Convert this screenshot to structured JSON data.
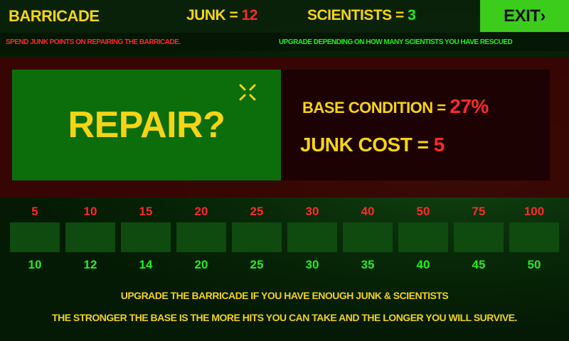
{
  "header": {
    "title": "BARRICADE",
    "junk_label": "JUNK = ",
    "junk_value": "12",
    "scientists_label": "SCIENTISTS = ",
    "scientists_value": "3",
    "exit_label": "EXIT›"
  },
  "subheader": {
    "left": "SPEND JUNK POINTS ON REPAIRING THE BARRICADE.",
    "right": "UPGRADE DEPENDING ON HOW MANY SCIENTISTS YOU HAVE RESCUED"
  },
  "repair": {
    "label": "REPAIR?",
    "cursor_icon": "crosshair-icon"
  },
  "info": {
    "condition_label": "BASE CONDITION = ",
    "condition_value": "27%",
    "cost_label": "JUNK COST = ",
    "cost_value": "5"
  },
  "upgrades": [
    {
      "junk": "5",
      "scientists": "10"
    },
    {
      "junk": "10",
      "scientists": "12"
    },
    {
      "junk": "15",
      "scientists": "14"
    },
    {
      "junk": "20",
      "scientists": "20"
    },
    {
      "junk": "25",
      "scientists": "25"
    },
    {
      "junk": "30",
      "scientists": "30"
    },
    {
      "junk": "40",
      "scientists": "35"
    },
    {
      "junk": "50",
      "scientists": "40"
    },
    {
      "junk": "75",
      "scientists": "45"
    },
    {
      "junk": "100",
      "scientists": "50"
    }
  ],
  "footer": {
    "line1": "UPGRADE THE BARRICADE IF YOU HAVE ENOUGH JUNK & SCIENTISTS",
    "line2": "THE STRONGER THE BASE IS THE MORE HITS YOU CAN TAKE AND THE LONGER YOU WILL SURVIVE."
  },
  "colors": {
    "yellow": "#f5d416",
    "red": "#ff2a2a",
    "green": "#22ee22",
    "exit": "#3ccc1c"
  }
}
